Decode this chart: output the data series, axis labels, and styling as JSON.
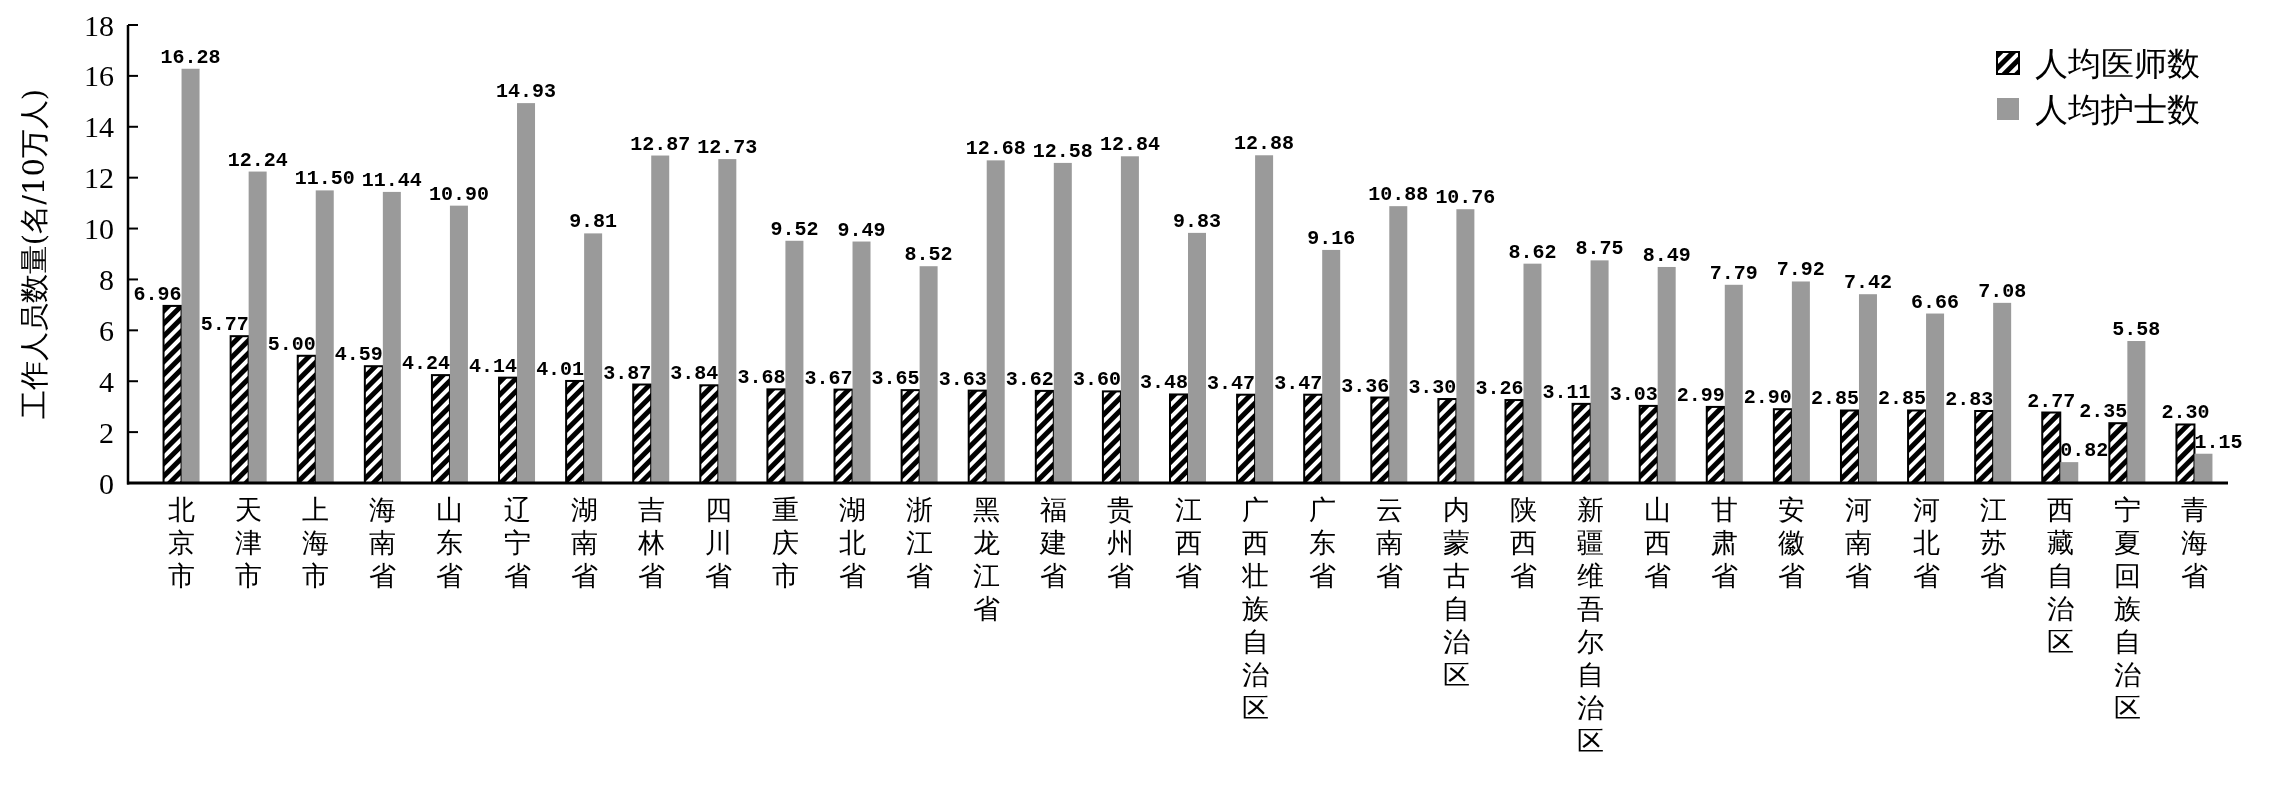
{
  "chart_data": {
    "type": "bar",
    "ylabel": "工作人员数量(名/10万人)",
    "categories": [
      "北京市",
      "天津市",
      "上海市",
      "海南省",
      "山东省",
      "辽宁省",
      "湖南省",
      "吉林省",
      "四川省",
      "重庆市",
      "湖北省",
      "浙江省",
      "黑龙江省",
      "福建省",
      "贵州省",
      "江西省",
      "广西壮族自治区",
      "广东省",
      "云南省",
      "内蒙古自治区",
      "陕西省",
      "新疆维吾尔自治区",
      "山西省",
      "甘肃省",
      "安徽省",
      "河南省",
      "河北省",
      "江苏省",
      "西藏自治区",
      "宁夏回族自治区",
      "青海省"
    ],
    "series": [
      {
        "name": "人均医师数",
        "color": "#000000",
        "values": [
          6.96,
          5.77,
          5.0,
          4.59,
          4.24,
          4.14,
          4.01,
          3.87,
          3.84,
          3.68,
          3.67,
          3.65,
          3.63,
          3.62,
          3.6,
          3.48,
          3.47,
          3.47,
          3.36,
          3.3,
          3.26,
          3.11,
          3.03,
          2.99,
          2.9,
          2.85,
          2.85,
          2.83,
          2.77,
          2.35,
          2.3
        ],
        "value_labels": [
          "6.96",
          "5.77",
          "5.00",
          "4.59",
          "4.24",
          "4.14",
          "4.01",
          "3.87",
          "3.84",
          "3.68",
          "3.67",
          "3.65",
          "3.63",
          "3.62",
          "3.60",
          "3.48",
          "3.47",
          "3.47",
          "3.36",
          "3.30",
          "3.26",
          "3.11",
          "3.03",
          "2.99",
          "2.90",
          "2.85",
          "2.85",
          "2.83",
          "2.77",
          "2.35",
          "2.30"
        ]
      },
      {
        "name": "人均护士数",
        "color": "#9a9a9a",
        "values": [
          16.28,
          12.24,
          11.5,
          11.44,
          10.9,
          14.93,
          9.81,
          12.87,
          12.73,
          9.52,
          9.49,
          8.52,
          12.68,
          12.58,
          12.84,
          9.83,
          12.88,
          9.16,
          10.88,
          10.76,
          8.62,
          8.75,
          8.49,
          7.79,
          7.92,
          7.42,
          6.66,
          7.08,
          0.82,
          5.58,
          1.15
        ],
        "value_labels": [
          "16.28",
          "12.24",
          "11.50",
          "11.44",
          "10.90",
          "14.93",
          "9.81",
          "12.87",
          "12.73",
          "9.52",
          "9.49",
          "8.52",
          "12.68",
          "12.58",
          "12.84",
          "9.83",
          "12.88",
          "9.16",
          "10.88",
          "10.76",
          "8.62",
          "8.75",
          "8.49",
          "7.79",
          "7.92",
          "7.42",
          "6.66",
          "7.08",
          "0.82",
          "5.58",
          "1.15"
        ]
      }
    ],
    "ylim": [
      0,
      18
    ],
    "yticks": [
      0,
      2,
      4,
      6,
      8,
      10,
      12,
      14,
      16,
      18
    ],
    "legend": "top right"
  }
}
